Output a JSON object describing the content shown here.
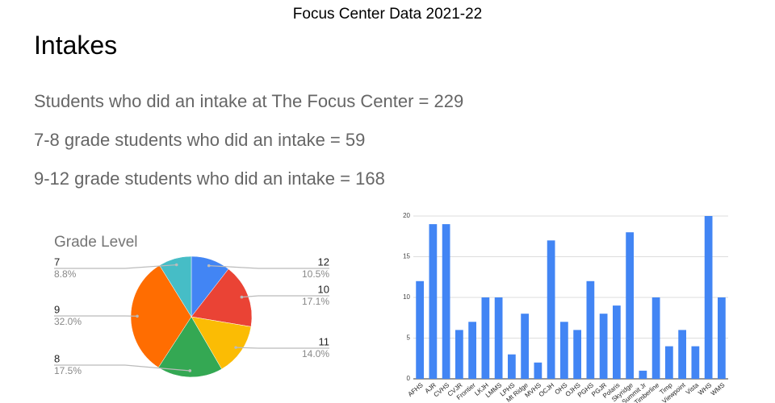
{
  "title": "Focus Center Data 2021-22",
  "heading": "Intakes",
  "lines": [
    "Students who did an intake at The Focus Center = 229",
    "7-8 grade students who did an intake = 59",
    "9-12 grade students who did an intake = 168"
  ],
  "chart_data": [
    {
      "type": "pie",
      "title": "Grade Level",
      "categories": [
        "12",
        "10",
        "11",
        "8",
        "9",
        "7"
      ],
      "values": [
        10.5,
        17.1,
        14,
        17.5,
        32,
        8.8
      ],
      "value_labels": [
        "10.5%",
        "17.1%",
        "14.0%",
        "17.5%",
        "32.0%",
        "8.8%"
      ],
      "colors": [
        "#4285f4",
        "#ea4335",
        "#fbbc04",
        "#34a853",
        "#ff6d01",
        "#46bdc6"
      ]
    },
    {
      "type": "bar",
      "categories": [
        "AFHS",
        "AJR",
        "CVHS",
        "CVJR",
        "Frontier",
        "LKJH",
        "LMMS",
        "LPHS",
        "Mt Ridge",
        "MVHS",
        "OCJH",
        "OHS",
        "OJHS",
        "PGHS",
        "PGJR",
        "Polaris",
        "Skyridge",
        "Summit Jr",
        "Timberline",
        "Timp",
        "Viewpoint",
        "Vista",
        "WHS",
        "WMS"
      ],
      "values": [
        12,
        19,
        19,
        6,
        7,
        10,
        10,
        3,
        8,
        2,
        17,
        7,
        6,
        12,
        8,
        9,
        18,
        1,
        10,
        4,
        6,
        4,
        20,
        10
      ],
      "color": "#4285f4",
      "ylim": [
        0,
        20
      ],
      "yticks": [
        0,
        5,
        10,
        15,
        20
      ],
      "grid": true
    }
  ]
}
